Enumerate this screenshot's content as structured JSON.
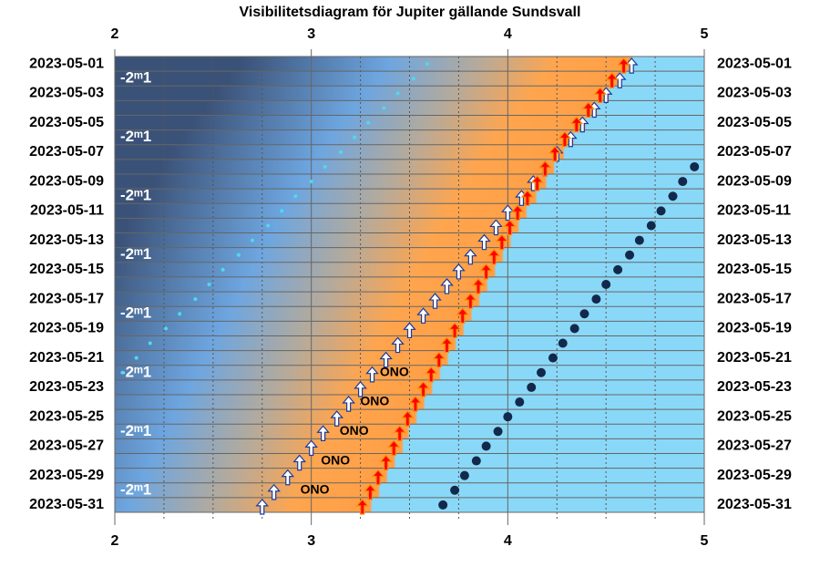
{
  "chart_data": {
    "type": "visibility",
    "title": "Visibilitetsdiagram för Jupiter gällande Sundsvall",
    "xlim": [
      2,
      5
    ],
    "xticks": [
      2,
      3,
      4,
      5
    ],
    "minor_xticks": [
      2.25,
      2.5,
      2.75,
      3.25,
      3.5,
      3.75,
      4.25,
      4.5,
      4.75
    ],
    "categories": [
      "2023-05-01",
      null,
      "2023-05-03",
      null,
      "2023-05-05",
      null,
      "2023-05-07",
      null,
      "2023-05-09",
      null,
      "2023-05-11",
      null,
      "2023-05-13",
      null,
      "2023-05-15",
      null,
      "2023-05-17",
      null,
      "2023-05-19",
      null,
      "2023-05-21",
      null,
      "2023-05-23",
      null,
      "2023-05-25",
      null,
      "2023-05-27",
      null,
      "2023-05-29",
      null,
      "2023-05-31"
    ],
    "series": [
      {
        "marker": "arrow",
        "color": "#ffffff",
        "values": [
          4.63,
          4.57,
          4.5,
          4.44,
          4.38,
          4.32,
          4.25,
          4.19,
          4.13,
          4.07,
          4.0,
          3.94,
          3.88,
          3.81,
          3.75,
          3.69,
          3.63,
          3.57,
          3.5,
          3.44,
          3.38,
          3.31,
          3.25,
          3.19,
          3.13,
          3.06,
          3.0,
          2.94,
          2.88,
          2.81,
          2.75
        ]
      },
      {
        "marker": "arrow",
        "color": "#ff0000",
        "values": [
          4.59,
          4.53,
          4.47,
          4.41,
          4.35,
          4.29,
          4.24,
          4.19,
          4.15,
          4.1,
          4.05,
          4.01,
          3.97,
          3.93,
          3.89,
          3.85,
          3.81,
          3.77,
          3.73,
          3.69,
          3.65,
          3.61,
          3.57,
          3.53,
          3.49,
          3.45,
          3.42,
          3.38,
          3.34,
          3.3,
          3.26
        ]
      },
      {
        "marker": "dot",
        "color": "#13294b",
        "values": [
          null,
          null,
          null,
          null,
          null,
          null,
          null,
          4.95,
          4.89,
          4.84,
          4.78,
          4.73,
          4.67,
          4.62,
          4.56,
          4.5,
          4.45,
          4.39,
          4.34,
          4.28,
          4.23,
          4.17,
          4.12,
          4.06,
          4.0,
          3.95,
          3.89,
          3.84,
          3.78,
          3.73,
          3.67
        ]
      },
      {
        "marker": "small-dot",
        "color": "#4fd9ee",
        "values": [
          3.59,
          3.52,
          3.44,
          3.37,
          3.29,
          3.22,
          3.15,
          3.07,
          3.0,
          2.92,
          2.85,
          2.78,
          2.7,
          2.63,
          2.55,
          2.48,
          2.41,
          2.33,
          2.26,
          2.18,
          2.11,
          2.04,
          null,
          null,
          null,
          null,
          null,
          null,
          null,
          null,
          null
        ]
      }
    ],
    "direction_labels": [
      null,
      null,
      null,
      null,
      null,
      null,
      null,
      null,
      null,
      null,
      null,
      null,
      null,
      null,
      null,
      null,
      null,
      null,
      null,
      null,
      null,
      "ONO",
      null,
      "ONO",
      null,
      "ONO",
      null,
      "ONO",
      null,
      "ONO",
      null
    ],
    "magnitude_labels": [
      null,
      "-2ᵐ1",
      null,
      null,
      null,
      "-2ᵐ1",
      null,
      null,
      null,
      "-2ᵐ1",
      null,
      null,
      null,
      "-2ᵐ1",
      null,
      null,
      null,
      "-2ᵐ1",
      null,
      null,
      null,
      "-2ᵐ1",
      null,
      null,
      null,
      "-2ᵐ1",
      null,
      null,
      null,
      "-2ᵐ1",
      null
    ]
  }
}
